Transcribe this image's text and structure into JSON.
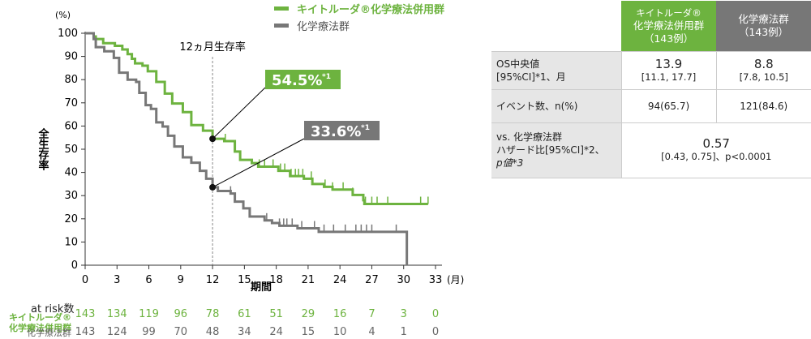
{
  "legend": [
    {
      "label": "キイトルーダ®化学療法併用群",
      "color": "#6db33f"
    },
    {
      "label": "化学療法群",
      "color": "#777777"
    }
  ],
  "chart_data": {
    "type": "line",
    "ylabel": "全生存率",
    "yunit": "(%)",
    "xlabel": "期間",
    "xunit": "(月)",
    "xlim": [
      0,
      33
    ],
    "ylim": [
      0,
      100
    ],
    "xticks": [
      0,
      3,
      6,
      9,
      12,
      15,
      18,
      21,
      24,
      27,
      30,
      33
    ],
    "yticks": [
      0,
      10,
      20,
      30,
      40,
      50,
      60,
      70,
      80,
      90,
      100
    ],
    "annotation": "12ヵ月生存率",
    "series": [
      {
        "name": "キイトルーダ®化学療法併用群",
        "color": "#6db33f",
        "label": "54.5%",
        "label_note": "*1",
        "points": [
          [
            0,
            100
          ],
          [
            0.8,
            98.6
          ],
          [
            1,
            97.5
          ],
          [
            1.7,
            95.7
          ],
          [
            2.8,
            94.6
          ],
          [
            3.5,
            93
          ],
          [
            4,
            91
          ],
          [
            4.4,
            89
          ],
          [
            4.7,
            87
          ],
          [
            5.4,
            86
          ],
          [
            5.9,
            83.6
          ],
          [
            6.7,
            79
          ],
          [
            7.5,
            74
          ],
          [
            8.2,
            69.7
          ],
          [
            9.2,
            66
          ],
          [
            10,
            60.4
          ],
          [
            11.1,
            58
          ],
          [
            12,
            54.5
          ],
          [
            13.1,
            53.5
          ],
          [
            14.1,
            49
          ],
          [
            14.6,
            45.4
          ],
          [
            15.7,
            44
          ],
          [
            16.3,
            42.5
          ],
          [
            18.2,
            40.7
          ],
          [
            19.3,
            38.4
          ],
          [
            20.6,
            37.3
          ],
          [
            21.4,
            35
          ],
          [
            22.5,
            33.8
          ],
          [
            23.3,
            32.6
          ],
          [
            25.2,
            30.3
          ],
          [
            26.2,
            28
          ],
          [
            26.3,
            26.4
          ],
          [
            32.3,
            26.4
          ]
        ],
        "censored": [
          13.2,
          16.4,
          16.9,
          17.7,
          18.4,
          18.8,
          19.4,
          19.8,
          20.1,
          20.5,
          21.3,
          22.6,
          23.3,
          24.3,
          25.2,
          26.4,
          27,
          27.5,
          28.5,
          31.6,
          32.3
        ]
      },
      {
        "name": "化学療法群",
        "color": "#777777",
        "label": "33.6%",
        "label_note": "*1",
        "points": [
          [
            0,
            100
          ],
          [
            0.8,
            97.5
          ],
          [
            1,
            94
          ],
          [
            1.8,
            92.2
          ],
          [
            2.7,
            89.4
          ],
          [
            3.2,
            83
          ],
          [
            4,
            80
          ],
          [
            4.8,
            79
          ],
          [
            5.1,
            74.3
          ],
          [
            5.7,
            69
          ],
          [
            6.2,
            67.4
          ],
          [
            6.7,
            61.6
          ],
          [
            7.3,
            59.8
          ],
          [
            7.8,
            55.8
          ],
          [
            8.4,
            51.2
          ],
          [
            9.2,
            46.5
          ],
          [
            10,
            44.2
          ],
          [
            10.8,
            40.7
          ],
          [
            11.4,
            37.3
          ],
          [
            12,
            33.6
          ],
          [
            12.5,
            32
          ],
          [
            13.7,
            30.9
          ],
          [
            14.1,
            27.4
          ],
          [
            14.9,
            24.5
          ],
          [
            15.5,
            21
          ],
          [
            16.9,
            19.3
          ],
          [
            17.6,
            18.2
          ],
          [
            18.3,
            17
          ],
          [
            20,
            15.9
          ],
          [
            22,
            14.4
          ],
          [
            30.3,
            14.4
          ],
          [
            30.3,
            0
          ]
        ],
        "censored": [
          13.7,
          17.1,
          18.3,
          18.7,
          19,
          19.5,
          20.4,
          21.6,
          22.5,
          23.4,
          24.5,
          25.5,
          26,
          26.5,
          27,
          29.3
        ]
      }
    ]
  },
  "at_risk": {
    "title": "at risk数",
    "rows": [
      {
        "label1": "キイトルーダ®",
        "label2": "化学療法併用群",
        "color": "#6db33f",
        "values": [
          "143",
          "134",
          "119",
          "96",
          "78",
          "61",
          "51",
          "29",
          "16",
          "7",
          "3",
          "0"
        ]
      },
      {
        "label1": "",
        "label2": "化学療法群",
        "color": "#666666",
        "values": [
          "143",
          "124",
          "99",
          "70",
          "48",
          "34",
          "24",
          "15",
          "10",
          "4",
          "1",
          "0"
        ]
      }
    ]
  },
  "table": {
    "headers": [
      {
        "l1": "キイトルーダ®",
        "l2": "化学療法併用群",
        "l3": "（143例）",
        "bg": "#6db33f"
      },
      {
        "l1": "化学療法群",
        "l2": "（143例）",
        "bg": "#777777"
      }
    ],
    "rows": [
      {
        "label1": "OS中央値",
        "label2": "[95%CI]*1、月",
        "v1a": "13.9",
        "v1b": "[11.1, 17.7]",
        "v2a": "8.8",
        "v2b": "[7.8, 10.5]"
      },
      {
        "label1": "イベント数、n(%)",
        "v1a": "94(65.7)",
        "v2a": "121(84.6)"
      },
      {
        "label1": "vs. 化学療法群",
        "label2": "ハザード比[95%CI]*2、",
        "label3": "p値*3",
        "va": "0.57",
        "vb": "[0.43, 0.75]、p<0.0001"
      }
    ]
  }
}
